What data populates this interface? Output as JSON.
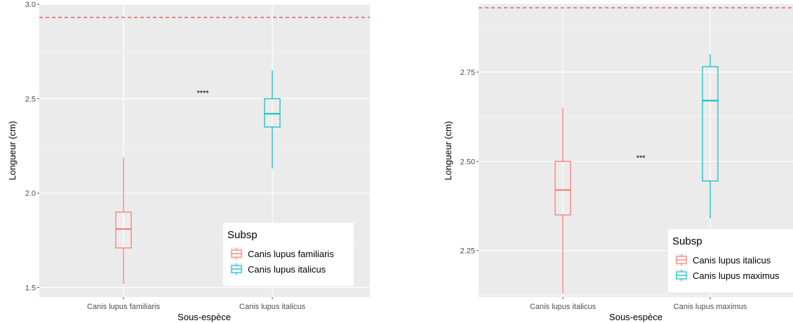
{
  "chart_data": [
    {
      "type": "boxplot",
      "xlabel": "Sous-espèce",
      "ylabel": "Longueur (cm)",
      "ylim": [
        1.45,
        3.0
      ],
      "yticks": [
        1.5,
        2.0,
        2.5,
        3.0
      ],
      "ytick_labels": [
        "1.5",
        "2.0",
        "2.5",
        "3.0"
      ],
      "categories": [
        "Canis lupus familiaris",
        "Canis lupus italicus"
      ],
      "boxes": [
        {
          "category": "Canis lupus familiaris",
          "min": 1.52,
          "q1": 1.71,
          "median": 1.81,
          "q3": 1.9,
          "max": 2.19,
          "color": "#F8766D"
        },
        {
          "category": "Canis lupus italicus",
          "min": 2.13,
          "q1": 2.35,
          "median": 2.42,
          "q3": 2.5,
          "max": 2.65,
          "color": "#00BFC4"
        }
      ],
      "reference_line": {
        "y": 2.93,
        "color": "#E0454B",
        "style": "dashed"
      },
      "significance": {
        "label": "****",
        "y": 2.53
      },
      "legend": {
        "title": "Subsp",
        "position": "bottom-right",
        "entries": [
          {
            "label": "Canis lupus familiaris",
            "color": "#F8766D"
          },
          {
            "label": "Canis lupus italicus",
            "color": "#00BFC4"
          }
        ]
      },
      "grid": true
    },
    {
      "type": "boxplot",
      "xlabel": "Sous-espèce",
      "ylabel": "Longueur (cm)",
      "ylim": [
        2.12,
        2.94
      ],
      "yticks": [
        2.25,
        2.5,
        2.75
      ],
      "ytick_labels": [
        "2.25",
        "2.50",
        "2.75"
      ],
      "categories": [
        "Canis lupus italicus",
        "Canis lupus maximus"
      ],
      "boxes": [
        {
          "category": "Canis lupus italicus",
          "min": 2.13,
          "q1": 2.35,
          "median": 2.42,
          "q3": 2.5,
          "max": 2.65,
          "color": "#F8766D"
        },
        {
          "category": "Canis lupus maximus",
          "min": 2.34,
          "q1": 2.445,
          "median": 2.67,
          "q3": 2.765,
          "max": 2.8,
          "color": "#00BFC4"
        }
      ],
      "reference_line": {
        "y": 2.93,
        "color": "#E0454B",
        "style": "dashed"
      },
      "significance": {
        "label": "***",
        "y": 2.51
      },
      "legend": {
        "title": "Subsp",
        "position": "bottom-right",
        "entries": [
          {
            "label": "Canis lupus italicus",
            "color": "#F8766D"
          },
          {
            "label": "Canis lupus maximus",
            "color": "#00BFC4"
          }
        ]
      },
      "grid": true
    }
  ]
}
